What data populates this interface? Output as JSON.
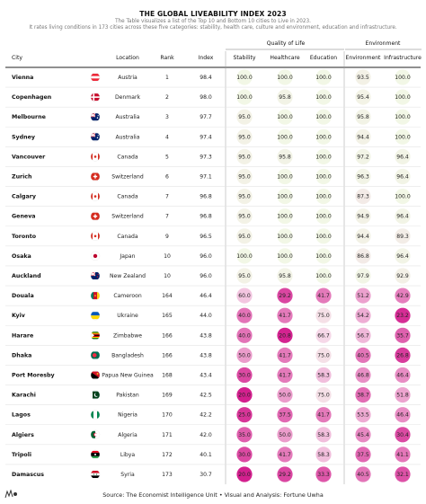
{
  "title": "THE GLOBAL LIVEABILITY INDEX 2023",
  "subtitle_lines": [
    "The Table visualizes a list of the Top 10 and Bottom 10 cities to Live in 2023.",
    "It rates living conditions in 173 cities across these five categories: stability, health care, culture and environment, education and infrastructure."
  ],
  "source": "Source: The Economist Intelligence Unit • Visual and Analysis: Fortune Uwha",
  "groups": [
    "Quality of Life",
    "Environment"
  ],
  "columns": [
    "City",
    "Location",
    "Rank",
    "Index",
    "Stability",
    "Healthcare",
    "Education",
    "Environment",
    "Infrastructure"
  ],
  "colors": {
    "low": "#d3208e",
    "mid": "#f6d6e8",
    "high": "#f2f7e6",
    "accent": "#111111"
  },
  "chart_data": {
    "type": "table",
    "rows": [
      {
        "city": "Vienna",
        "location": "Austria",
        "flag": "austria-flag",
        "rank": 1,
        "index": "98.4",
        "stability": "100.0",
        "healthcare": "100.0",
        "education": "100.0",
        "environment": "93.5",
        "infrastructure": "100.0"
      },
      {
        "city": "Copenhagen",
        "location": "Denmark",
        "flag": "denmark-flag",
        "rank": 2,
        "index": "98.0",
        "stability": "100.0",
        "healthcare": "95.8",
        "education": "100.0",
        "environment": "95.4",
        "infrastructure": "100.0"
      },
      {
        "city": "Melbourne",
        "location": "Australia",
        "flag": "australia-flag",
        "rank": 3,
        "index": "97.7",
        "stability": "95.0",
        "healthcare": "100.0",
        "education": "100.0",
        "environment": "95.8",
        "infrastructure": "100.0"
      },
      {
        "city": "Sydney",
        "location": "Australia",
        "flag": "australia-flag",
        "rank": 4,
        "index": "97.4",
        "stability": "95.0",
        "healthcare": "100.0",
        "education": "100.0",
        "environment": "94.4",
        "infrastructure": "100.0"
      },
      {
        "city": "Vancouver",
        "location": "Canada",
        "flag": "canada-flag",
        "rank": 5,
        "index": "97.3",
        "stability": "95.0",
        "healthcare": "95.8",
        "education": "100.0",
        "environment": "97.2",
        "infrastructure": "96.4"
      },
      {
        "city": "Zurich",
        "location": "Switzerland",
        "flag": "switzerland-flag",
        "rank": 6,
        "index": "97.1",
        "stability": "95.0",
        "healthcare": "100.0",
        "education": "100.0",
        "environment": "96.3",
        "infrastructure": "96.4"
      },
      {
        "city": "Calgary",
        "location": "Canada",
        "flag": "canada-flag",
        "rank": 7,
        "index": "96.8",
        "stability": "95.0",
        "healthcare": "100.0",
        "education": "100.0",
        "environment": "87.3",
        "infrastructure": "100.0"
      },
      {
        "city": "Geneva",
        "location": "Switzerland",
        "flag": "switzerland-flag",
        "rank": 7,
        "index": "96.8",
        "stability": "95.0",
        "healthcare": "100.0",
        "education": "100.0",
        "environment": "94.9",
        "infrastructure": "96.4"
      },
      {
        "city": "Toronto",
        "location": "Canada",
        "flag": "canada-flag",
        "rank": 9,
        "index": "96.5",
        "stability": "95.0",
        "healthcare": "100.0",
        "education": "100.0",
        "environment": "94.4",
        "infrastructure": "89.3"
      },
      {
        "city": "Osaka",
        "location": "Japan",
        "flag": "japan-flag",
        "rank": 10,
        "index": "96.0",
        "stability": "100.0",
        "healthcare": "100.0",
        "education": "100.0",
        "environment": "86.8",
        "infrastructure": "96.4"
      },
      {
        "city": "Auckland",
        "location": "New Zealand",
        "flag": "new-zealand-flag",
        "rank": 10,
        "index": "96.0",
        "stability": "95.0",
        "healthcare": "95.8",
        "education": "100.0",
        "environment": "97.9",
        "infrastructure": "92.9"
      },
      {
        "city": "Douala",
        "location": "Cameroon",
        "flag": "cameroon-flag",
        "rank": 164,
        "index": "46.4",
        "stability": "60.0",
        "healthcare": "29.2",
        "education": "41.7",
        "environment": "51.2",
        "infrastructure": "42.9"
      },
      {
        "city": "Kyiv",
        "location": "Ukraine",
        "flag": "ukraine-flag",
        "rank": 165,
        "index": "44.0",
        "stability": "40.0",
        "healthcare": "41.7",
        "education": "75.0",
        "environment": "54.2",
        "infrastructure": "23.2"
      },
      {
        "city": "Harare",
        "location": "Zimbabwe",
        "flag": "zimbabwe-flag",
        "rank": 166,
        "index": "43.8",
        "stability": "40.0",
        "healthcare": "20.8",
        "education": "66.7",
        "environment": "56.7",
        "infrastructure": "35.7"
      },
      {
        "city": "Dhaka",
        "location": "Bangladesh",
        "flag": "bangladesh-flag",
        "rank": 166,
        "index": "43.8",
        "stability": "50.0",
        "healthcare": "41.7",
        "education": "75.0",
        "environment": "40.5",
        "infrastructure": "26.8"
      },
      {
        "city": "Port Moresby",
        "location": "Papua New Guinea",
        "flag": "papua-new-guinea-flag",
        "rank": 168,
        "index": "43.4",
        "stability": "30.0",
        "healthcare": "41.7",
        "education": "58.3",
        "environment": "46.8",
        "infrastructure": "46.4"
      },
      {
        "city": "Karachi",
        "location": "Pakistan",
        "flag": "pakistan-flag",
        "rank": 169,
        "index": "42.5",
        "stability": "20.0",
        "healthcare": "50.0",
        "education": "75.0",
        "environment": "38.7",
        "infrastructure": "51.8"
      },
      {
        "city": "Lagos",
        "location": "Nigeria",
        "flag": "nigeria-flag",
        "rank": 170,
        "index": "42.2",
        "stability": "25.0",
        "healthcare": "37.5",
        "education": "41.7",
        "environment": "53.5",
        "infrastructure": "46.4"
      },
      {
        "city": "Algiers",
        "location": "Algeria",
        "flag": "algeria-flag",
        "rank": 171,
        "index": "42.0",
        "stability": "35.0",
        "healthcare": "50.0",
        "education": "58.3",
        "environment": "45.4",
        "infrastructure": "30.4"
      },
      {
        "city": "Tripoli",
        "location": "Libya",
        "flag": "libya-flag",
        "rank": 172,
        "index": "40.1",
        "stability": "30.0",
        "healthcare": "41.7",
        "education": "58.3",
        "environment": "37.5",
        "infrastructure": "41.1"
      },
      {
        "city": "Damascus",
        "location": "Syria",
        "flag": "syria-flag",
        "rank": 173,
        "index": "30.7",
        "stability": "20.0",
        "healthcare": "29.2",
        "education": "33.3",
        "environment": "40.5",
        "infrastructure": "32.1"
      }
    ]
  }
}
